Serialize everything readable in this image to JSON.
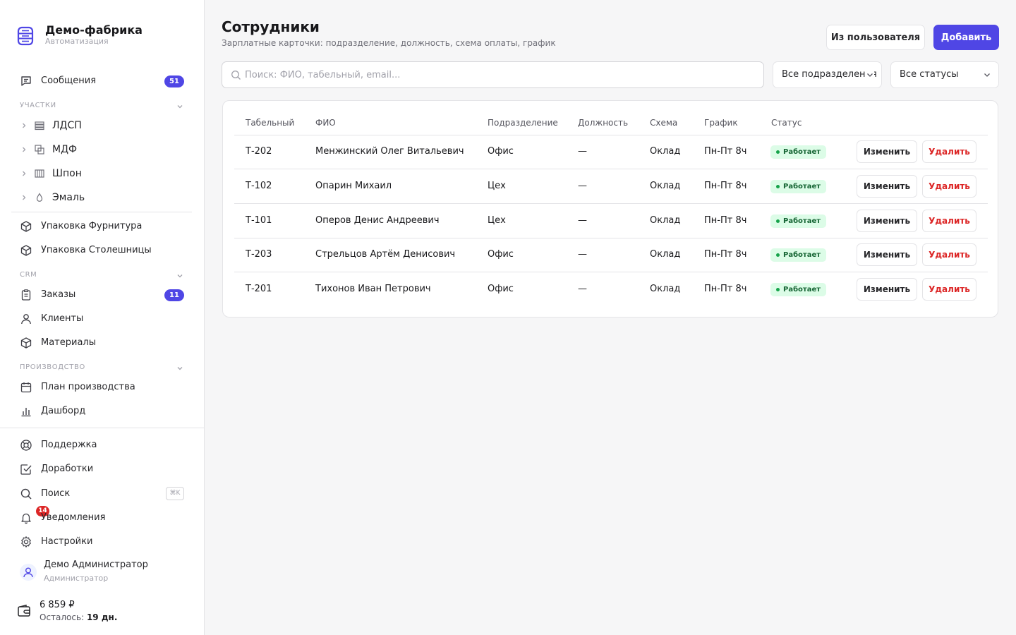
{
  "brand": {
    "title": "Демо-фабрика",
    "subtitle": "Автоматизация"
  },
  "sidebar": {
    "messages": {
      "label": "Сообщения",
      "count": "51"
    },
    "sections": {
      "areas": "Участки",
      "crm": "CRM",
      "production": "Производство"
    },
    "areas": [
      {
        "label": "ЛДСП",
        "icon": "layers-icon"
      },
      {
        "label": "МДФ",
        "icon": "copy-icon"
      },
      {
        "label": "Шпон",
        "icon": "columns-icon"
      },
      {
        "label": "Эмаль",
        "icon": "droplet-icon"
      }
    ],
    "packaging": [
      {
        "label": "Упаковка Фурнитура",
        "icon": "box-icon"
      },
      {
        "label": "Упаковка Столешницы",
        "icon": "box-icon"
      }
    ],
    "crm": [
      {
        "label": "Заказы",
        "icon": "clipboard-icon",
        "count": "11"
      },
      {
        "label": "Клиенты",
        "icon": "user-icon"
      },
      {
        "label": "Материалы",
        "icon": "box-icon"
      }
    ],
    "production": [
      {
        "label": "План производства",
        "icon": "calendar-icon"
      },
      {
        "label": "Дашборд",
        "icon": "bar-chart-icon"
      }
    ],
    "bottom": {
      "support": "Поддержка",
      "improvements": "Доработки",
      "search": "Поиск",
      "search_shortcut": "⌘K",
      "notifications": "Уведомления",
      "notifications_count": "14",
      "settings": "Настройки"
    },
    "user": {
      "name": "Демо Администратор",
      "role": "Администратор"
    },
    "balance": {
      "amount": "6 859 ₽",
      "left_label": "Осталось:",
      "left_value": "19 дн."
    }
  },
  "main": {
    "title": "Сотрудники",
    "subtitle": "Зарплатные карточки: подразделение, должность, схема оплаты, график",
    "btn_from_user": "Из пользователя",
    "btn_add": "Добавить",
    "search_placeholder": "Поиск: ФИО, табельный, email...",
    "filter_department": "Все подразделения",
    "filter_status": "Все статусы"
  },
  "table": {
    "columns": [
      "Табельный",
      "ФИО",
      "Подразделение",
      "Должность",
      "Схема",
      "График",
      "Статус"
    ],
    "edit_label": "Изменить",
    "delete_label": "Удалить",
    "rows": [
      {
        "id": "Т-202",
        "name": "Менжинский Олег Витальевич",
        "dept": "Офис",
        "position": "—",
        "scheme": "Оклад",
        "schedule": "Пн-Пт 8ч",
        "status": "Работает"
      },
      {
        "id": "Т-102",
        "name": "Опарин Михаил",
        "dept": "Цех",
        "position": "—",
        "scheme": "Оклад",
        "schedule": "Пн-Пт 8ч",
        "status": "Работает"
      },
      {
        "id": "Т-101",
        "name": "Оперов Денис Андреевич",
        "dept": "Цех",
        "position": "—",
        "scheme": "Оклад",
        "schedule": "Пн-Пт 8ч",
        "status": "Работает"
      },
      {
        "id": "Т-203",
        "name": "Стрельцов Артём Денисович",
        "dept": "Офис",
        "position": "—",
        "scheme": "Оклад",
        "schedule": "Пн-Пт 8ч",
        "status": "Работает"
      },
      {
        "id": "Т-201",
        "name": "Тихонов Иван Петрович",
        "dept": "Офис",
        "position": "—",
        "scheme": "Оклад",
        "schedule": "Пн-Пт 8ч",
        "status": "Работает"
      }
    ]
  },
  "colors": {
    "accent": "#4f46e5",
    "danger": "#dc2626",
    "success_bg": "#dcfce7",
    "success_text": "#166534"
  }
}
